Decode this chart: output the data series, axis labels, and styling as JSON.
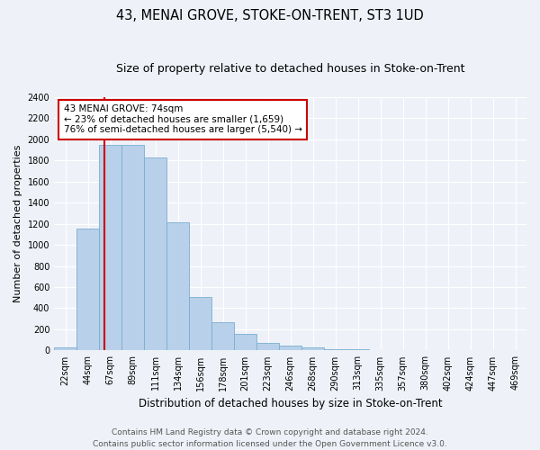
{
  "title": "43, MENAI GROVE, STOKE-ON-TRENT, ST3 1UD",
  "subtitle": "Size of property relative to detached houses in Stoke-on-Trent",
  "xlabel": "Distribution of detached houses by size in Stoke-on-Trent",
  "ylabel": "Number of detached properties",
  "categories": [
    "22sqm",
    "44sqm",
    "67sqm",
    "89sqm",
    "111sqm",
    "134sqm",
    "156sqm",
    "178sqm",
    "201sqm",
    "223sqm",
    "246sqm",
    "268sqm",
    "290sqm",
    "313sqm",
    "335sqm",
    "357sqm",
    "380sqm",
    "402sqm",
    "424sqm",
    "447sqm",
    "469sqm"
  ],
  "values": [
    25,
    1150,
    1950,
    1950,
    1830,
    1210,
    510,
    270,
    155,
    75,
    45,
    30,
    15,
    8,
    5,
    3,
    2,
    2,
    1,
    1,
    1
  ],
  "bar_color": "#b8d0ea",
  "bar_edge_color": "#7aaed0",
  "vline_color": "#cc0000",
  "vline_x": 1.72,
  "marker_label": "43 MENAI GROVE: 74sqm",
  "annotation_line1": "← 23% of detached houses are smaller (1,659)",
  "annotation_line2": "76% of semi-detached houses are larger (5,540) →",
  "annotation_box_color": "#ffffff",
  "annotation_box_edge_color": "#cc0000",
  "ylim": [
    0,
    2400
  ],
  "yticks": [
    0,
    200,
    400,
    600,
    800,
    1000,
    1200,
    1400,
    1600,
    1800,
    2000,
    2200,
    2400
  ],
  "footer_line1": "Contains HM Land Registry data © Crown copyright and database right 2024.",
  "footer_line2": "Contains public sector information licensed under the Open Government Licence v3.0.",
  "background_color": "#eef2f8",
  "plot_bg_color": "#eef2f8",
  "title_fontsize": 10.5,
  "subtitle_fontsize": 9,
  "xlabel_fontsize": 8.5,
  "ylabel_fontsize": 8,
  "tick_fontsize": 7,
  "annotation_fontsize": 7.5,
  "footer_fontsize": 6.5
}
